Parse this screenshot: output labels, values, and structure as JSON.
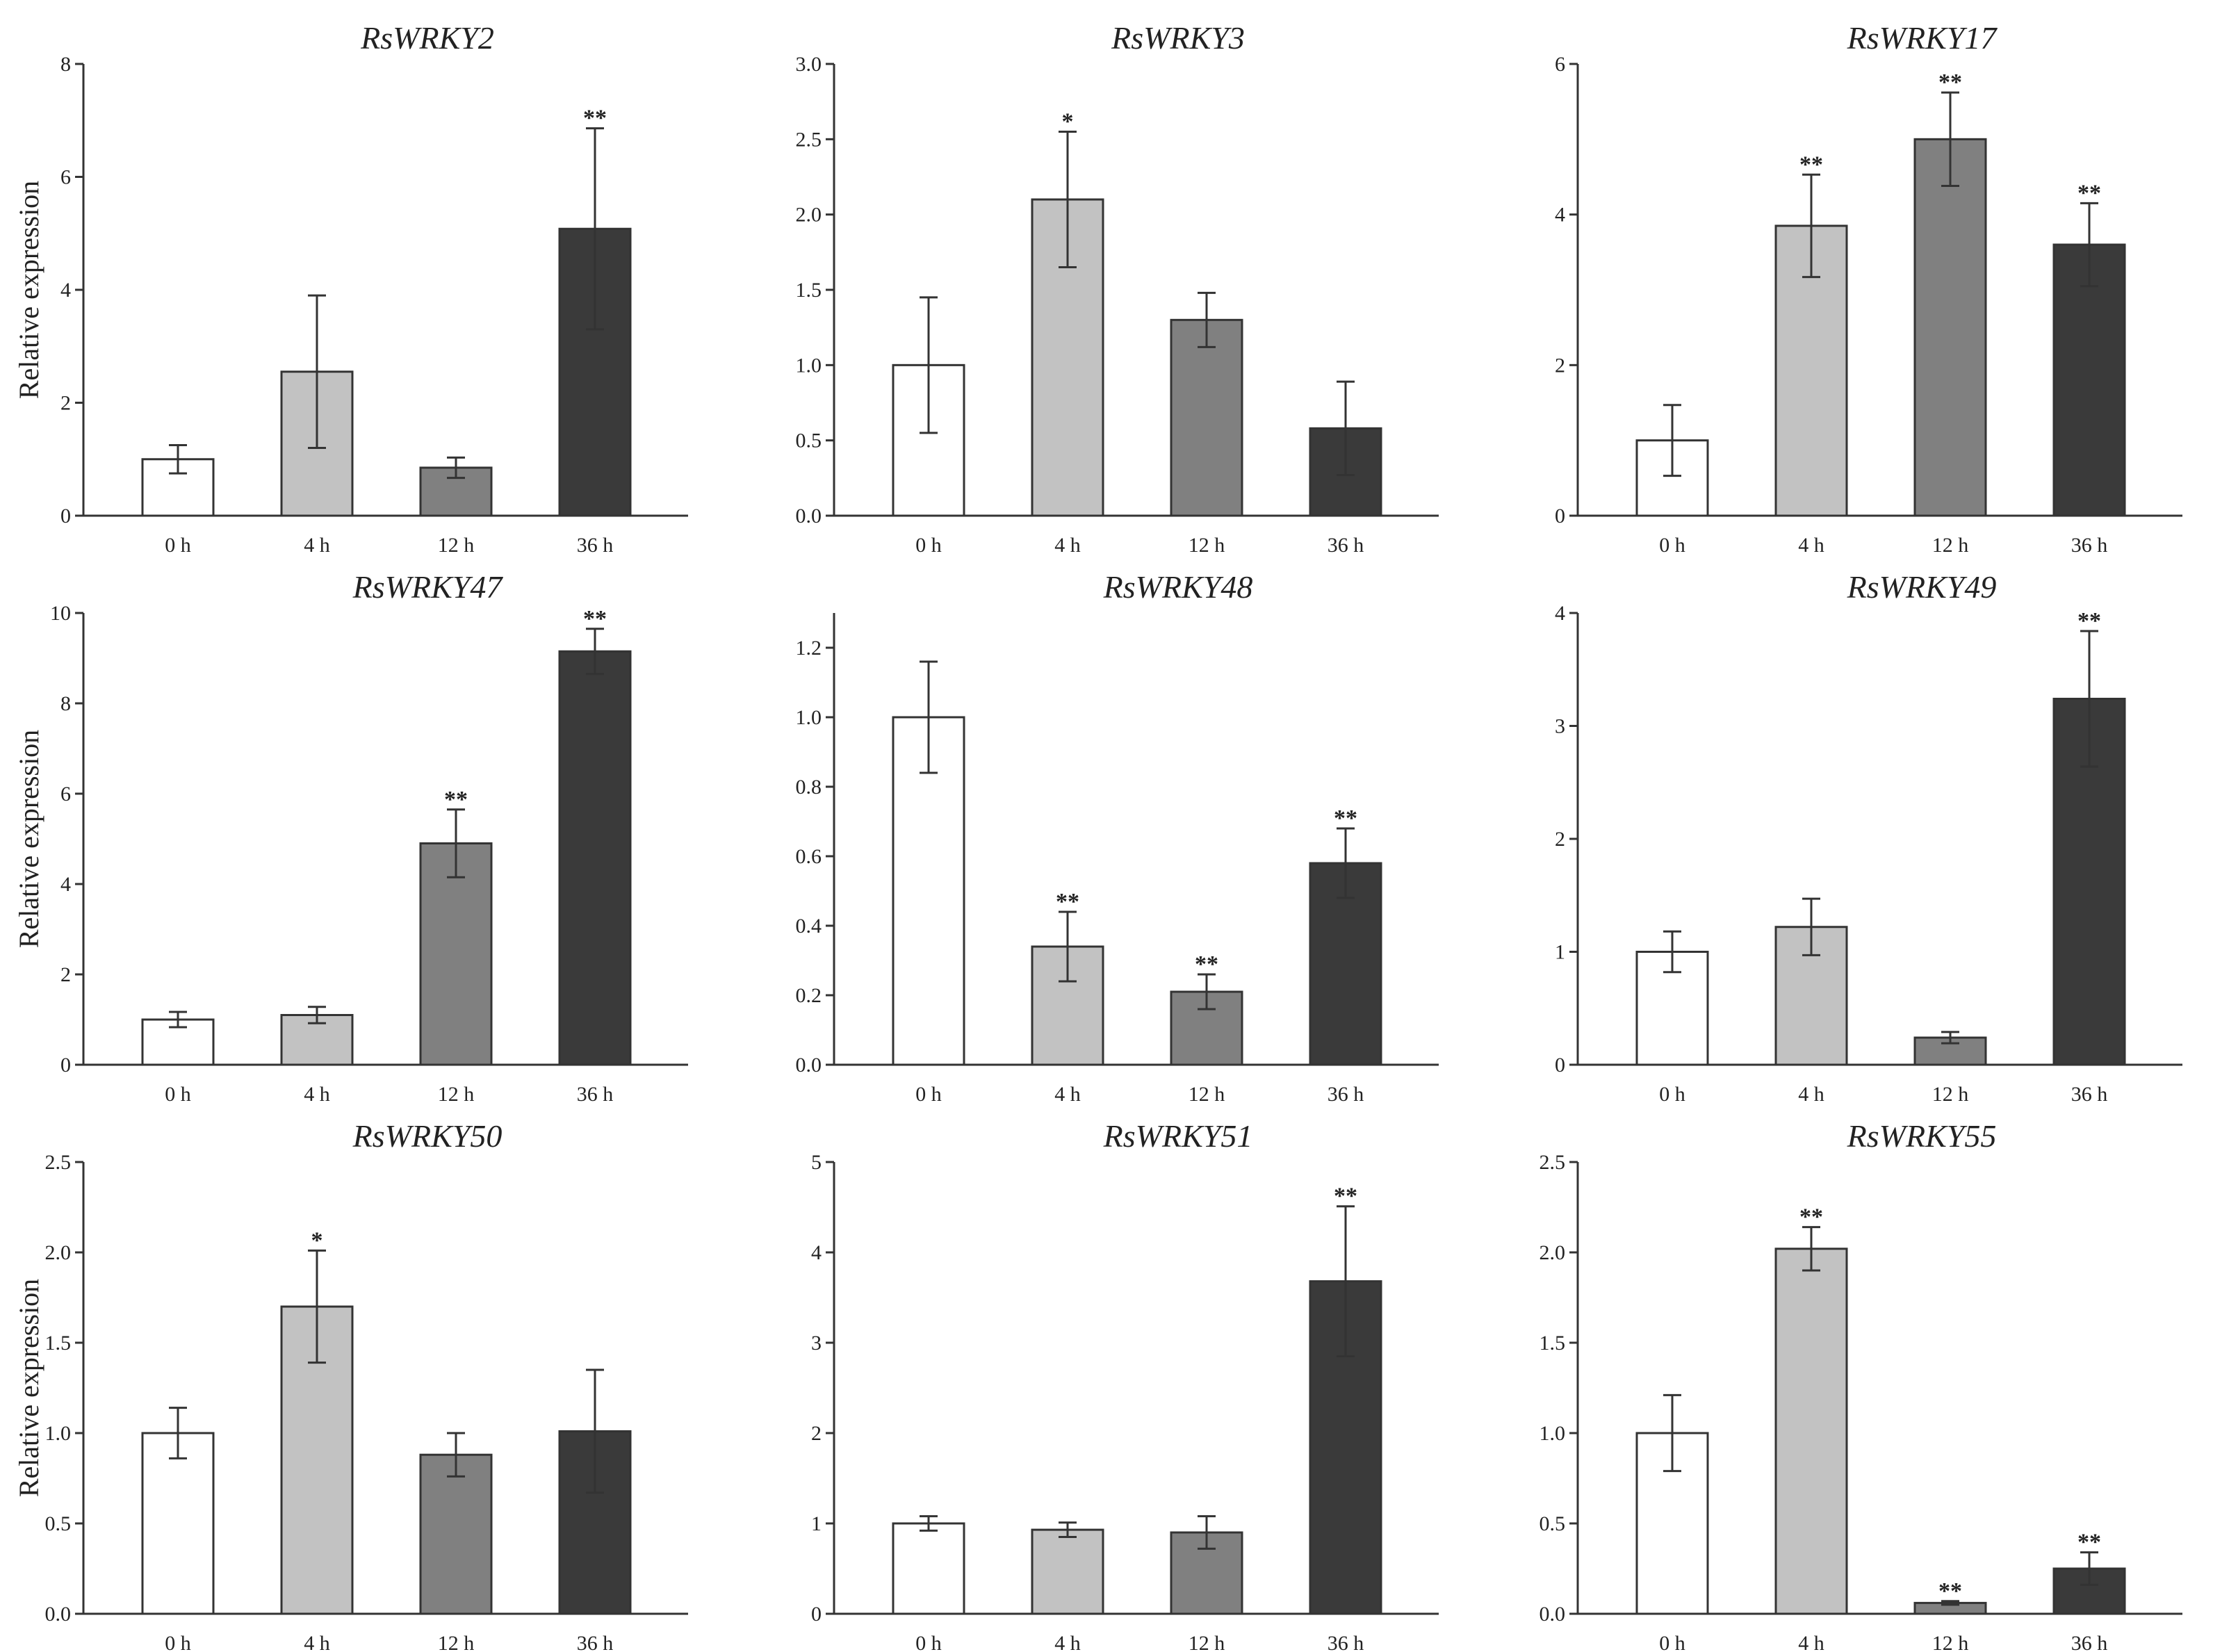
{
  "colors": {
    "axis": "#333333",
    "bar_0h": "#ffffff",
    "bar_4h": "#c2c2c2",
    "bar_12h": "#808080",
    "bar_36h": "#3a3a3a",
    "bar_outline": "#333333",
    "errorbar": "#333333"
  },
  "chart_data": [
    {
      "type": "bar",
      "title": "RsWRKY2",
      "ylabel": "Relative expression",
      "categories": [
        "0  h",
        "4  h",
        "12  h",
        "36  h"
      ],
      "values": [
        1.0,
        2.55,
        0.85,
        5.08
      ],
      "errors": [
        0.25,
        1.35,
        0.18,
        1.78
      ],
      "significance": [
        "",
        "",
        "",
        "**"
      ],
      "ylim": [
        0,
        8
      ],
      "yticks": [
        "0",
        "2",
        "4",
        "6",
        "8"
      ]
    },
    {
      "type": "bar",
      "title": "RsWRKY3",
      "ylabel": "",
      "categories": [
        "0  h",
        "4  h",
        "12  h",
        "36  h"
      ],
      "values": [
        1.0,
        2.1,
        1.3,
        0.58
      ],
      "errors": [
        0.45,
        0.45,
        0.18,
        0.31
      ],
      "significance": [
        "",
        "*",
        "",
        ""
      ],
      "ylim": [
        0,
        3
      ],
      "yticks": [
        "0.0",
        "0.5",
        "1.0",
        "1.5",
        "2.0",
        "2.5",
        "3.0"
      ]
    },
    {
      "type": "bar",
      "title": "RsWRKY17",
      "ylabel": "",
      "categories": [
        "0  h",
        "4  h",
        "12  h",
        "36  h"
      ],
      "values": [
        1.0,
        3.85,
        5.0,
        3.6
      ],
      "errors": [
        0.47,
        0.68,
        0.62,
        0.55
      ],
      "significance": [
        "",
        "**",
        "**",
        "**"
      ],
      "ylim": [
        0,
        6
      ],
      "yticks": [
        "0",
        "2",
        "4",
        "6"
      ]
    },
    {
      "type": "bar",
      "title": "RsWRKY47",
      "ylabel": "Relative expression",
      "categories": [
        "0  h",
        "4  h",
        "12  h",
        "36  h"
      ],
      "values": [
        1.0,
        1.1,
        4.9,
        9.15
      ],
      "errors": [
        0.17,
        0.18,
        0.75,
        0.5
      ],
      "significance": [
        "",
        "",
        "**",
        "**"
      ],
      "ylim": [
        0,
        10
      ],
      "yticks": [
        "0",
        "2",
        "4",
        "6",
        "8",
        "10"
      ]
    },
    {
      "type": "bar",
      "title": "RsWRKY48",
      "ylabel": "",
      "categories": [
        "0  h",
        "4  h",
        "12  h",
        "36  h"
      ],
      "values": [
        1.0,
        0.34,
        0.21,
        0.58
      ],
      "errors": [
        0.16,
        0.1,
        0.05,
        0.1
      ],
      "significance": [
        "",
        "**",
        "**",
        "**"
      ],
      "ylim": [
        0,
        1.3
      ],
      "yticks": [
        "0.0",
        "0.2",
        "0.4",
        "0.6",
        "0.8",
        "1.0",
        "1.2"
      ]
    },
    {
      "type": "bar",
      "title": "RsWRKY49",
      "ylabel": "",
      "categories": [
        "0  h",
        "4  h",
        "12  h",
        "36  h"
      ],
      "values": [
        1.0,
        1.22,
        0.24,
        3.24
      ],
      "errors": [
        0.18,
        0.25,
        0.05,
        0.6
      ],
      "significance": [
        "",
        "",
        "",
        "**"
      ],
      "ylim": [
        0,
        4
      ],
      "yticks": [
        "0",
        "1",
        "2",
        "3",
        "4"
      ]
    },
    {
      "type": "bar",
      "title": "RsWRKY50",
      "ylabel": "Relative expression",
      "categories": [
        "0  h",
        "4  h",
        "12  h",
        "36  h"
      ],
      "values": [
        1.0,
        1.7,
        0.88,
        1.01
      ],
      "errors": [
        0.14,
        0.31,
        0.12,
        0.34
      ],
      "significance": [
        "",
        "*",
        "",
        ""
      ],
      "ylim": [
        0,
        2.5
      ],
      "yticks": [
        "0.0",
        "0.5",
        "1.0",
        "1.5",
        "2.0",
        "2.5"
      ]
    },
    {
      "type": "bar",
      "title": "RsWRKY51",
      "ylabel": "",
      "categories": [
        "0  h",
        "4  h",
        "12  h",
        "36  h"
      ],
      "values": [
        1.0,
        0.93,
        0.9,
        3.68
      ],
      "errors": [
        0.08,
        0.08,
        0.18,
        0.83
      ],
      "significance": [
        "",
        "",
        "",
        "**"
      ],
      "ylim": [
        0,
        5
      ],
      "yticks": [
        "0",
        "1",
        "2",
        "3",
        "4",
        "5"
      ]
    },
    {
      "type": "bar",
      "title": "RsWRKY55",
      "ylabel": "",
      "categories": [
        "0  h",
        "4  h",
        "12  h",
        "36  h"
      ],
      "values": [
        1.0,
        2.02,
        0.06,
        0.25
      ],
      "errors": [
        0.21,
        0.12,
        0.01,
        0.09
      ],
      "significance": [
        "",
        "**",
        "**",
        "**"
      ],
      "ylim": [
        0,
        2.5
      ],
      "yticks": [
        "0.0",
        "0.5",
        "1.0",
        "1.5",
        "2.0",
        "2.5"
      ]
    }
  ]
}
